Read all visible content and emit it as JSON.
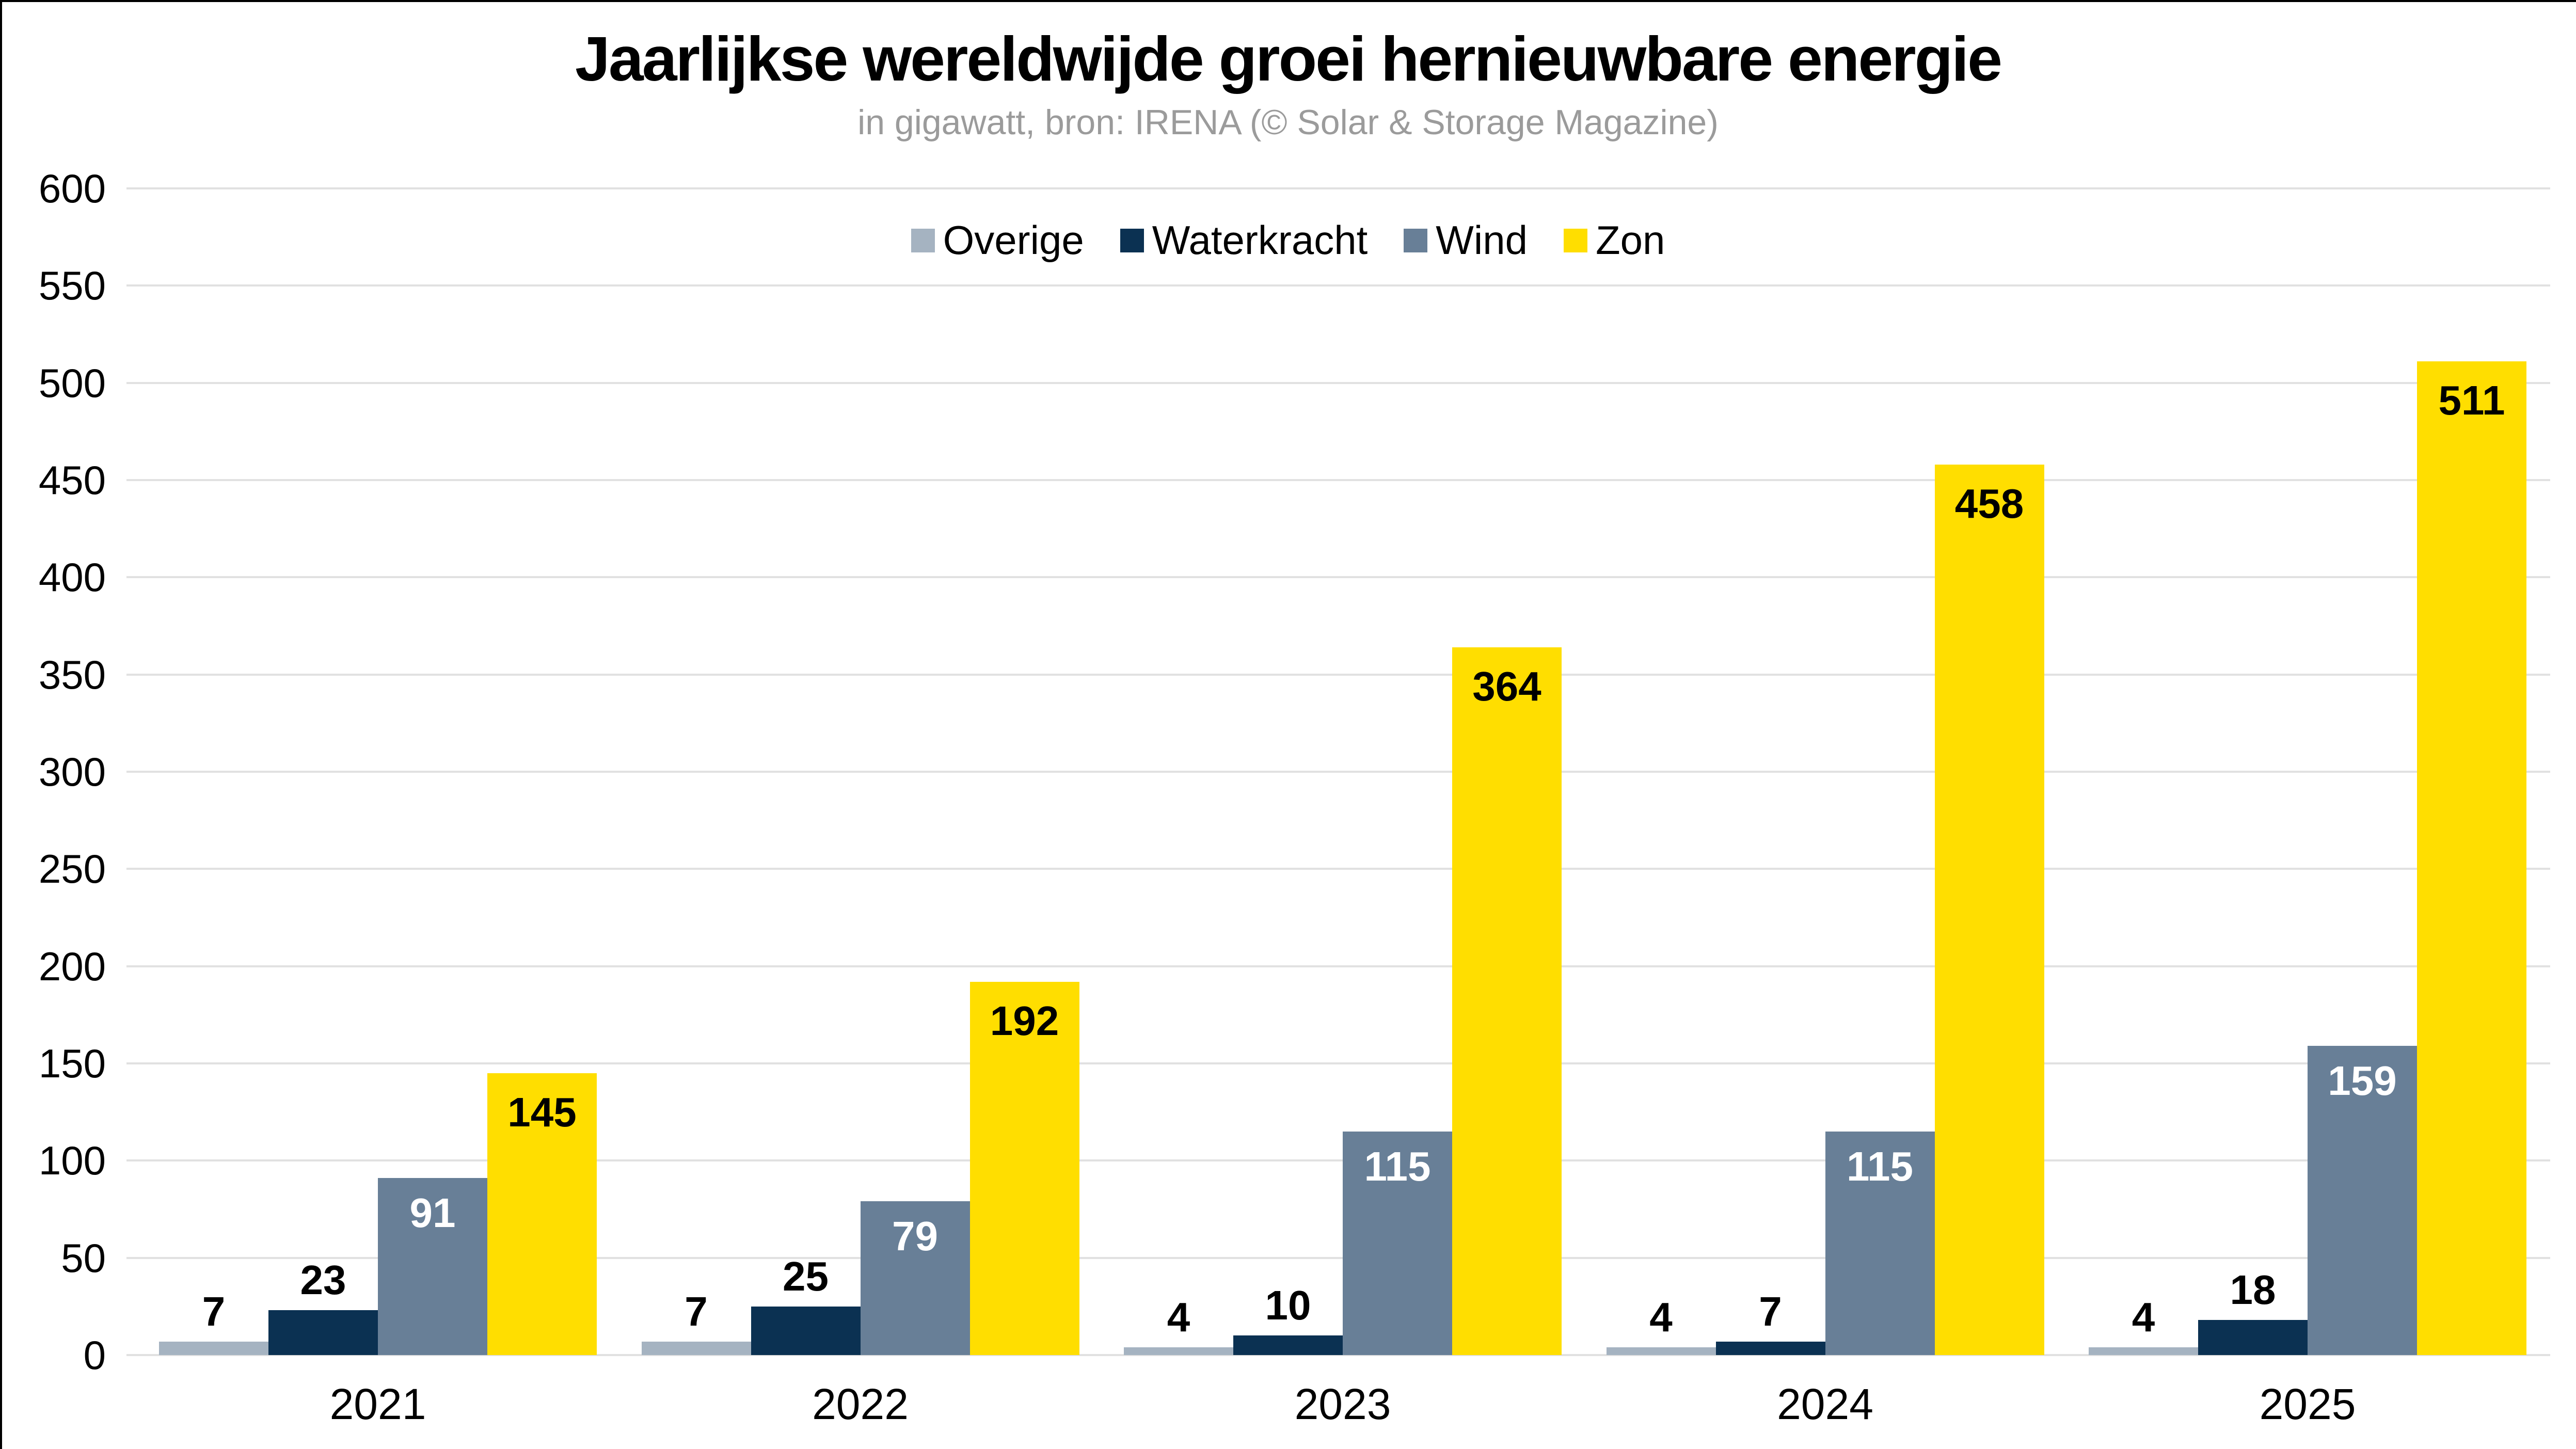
{
  "title": "Jaarlijkse wereldwijde groei hernieuwbare energie",
  "subtitle": "in gigawatt, bron: IRENA (© Solar & Storage Magazine)",
  "colors": {
    "background": "#ffffff",
    "grid": "#e1e1e1",
    "title_text": "#000000",
    "subtitle_text": "#9b9b9b",
    "axis_text": "#000000",
    "value_label_dark": "#000000",
    "value_label_light": "#ffffff",
    "window_edge": "#000000"
  },
  "chart_data": {
    "type": "bar",
    "categories": [
      "2021",
      "2022",
      "2023",
      "2024",
      "2025"
    ],
    "series": [
      {
        "name": "Overige",
        "color": "#a5b3c1",
        "values": [
          7,
          7,
          4,
          4,
          4
        ],
        "label_style": "black-above"
      },
      {
        "name": "Waterkracht",
        "color": "#0b3152",
        "values": [
          23,
          25,
          10,
          7,
          18
        ],
        "label_style": "black-above"
      },
      {
        "name": "Wind",
        "color": "#687f97",
        "values": [
          91,
          79,
          115,
          115,
          159
        ],
        "label_style": "white-inside"
      },
      {
        "name": "Zon",
        "color": "#ffde00",
        "values": [
          145,
          192,
          364,
          458,
          511
        ],
        "label_style": "black-inside"
      }
    ],
    "title": "Jaarlijkse wereldwijde groei hernieuwbare energie",
    "subtitle": "in gigawatt, bron: IRENA (© Solar & Storage Magazine)",
    "xlabel": "",
    "ylabel": "",
    "ylim": [
      0,
      600
    ],
    "yticks": [
      0,
      50,
      100,
      150,
      200,
      250,
      300,
      350,
      400,
      450,
      500,
      550,
      600
    ],
    "grid": "horizontal",
    "legend_position": "top-center"
  }
}
